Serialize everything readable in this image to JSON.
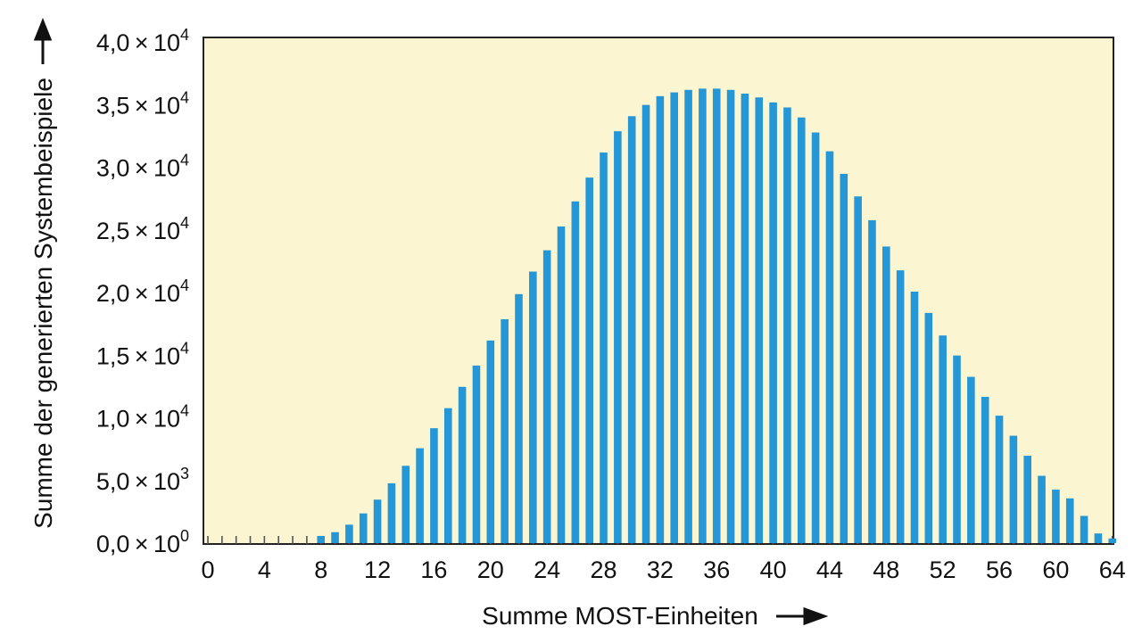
{
  "chart_data": {
    "type": "bar",
    "title": "",
    "xlabel": "Summe MOST-Einheiten",
    "ylabel": "Summe der generierten Systembeispiele",
    "xlim": [
      0,
      65
    ],
    "ylim": [
      0,
      40000
    ],
    "x_ticks": [
      0,
      4,
      8,
      12,
      16,
      20,
      24,
      28,
      32,
      36,
      40,
      44,
      48,
      52,
      56,
      60,
      64
    ],
    "y_ticks": [
      {
        "value": 0,
        "mantissa": "0,0",
        "exponent": "0"
      },
      {
        "value": 5000,
        "mantissa": "5,0",
        "exponent": "3"
      },
      {
        "value": 10000,
        "mantissa": "1,0",
        "exponent": "4"
      },
      {
        "value": 15000,
        "mantissa": "1,5",
        "exponent": "4"
      },
      {
        "value": 20000,
        "mantissa": "2,0",
        "exponent": "4"
      },
      {
        "value": 25000,
        "mantissa": "2,5",
        "exponent": "4"
      },
      {
        "value": 30000,
        "mantissa": "3,0",
        "exponent": "4"
      },
      {
        "value": 35000,
        "mantissa": "3,5",
        "exponent": "4"
      },
      {
        "value": 40000,
        "mantissa": "4,0",
        "exponent": "4"
      }
    ],
    "tick_times_symbol": "×",
    "tick_base": "10",
    "x": [
      8,
      9,
      10,
      11,
      12,
      13,
      14,
      15,
      16,
      17,
      18,
      19,
      20,
      21,
      22,
      23,
      24,
      25,
      26,
      27,
      28,
      29,
      30,
      31,
      32,
      33,
      34,
      35,
      36,
      37,
      38,
      39,
      40,
      41,
      42,
      43,
      44,
      45,
      46,
      47,
      48,
      49,
      50,
      51,
      52,
      53,
      54,
      55,
      56,
      57,
      58,
      59,
      60,
      61,
      62,
      63,
      64
    ],
    "values": [
      500,
      800,
      1400,
      2300,
      3400,
      4700,
      6100,
      7500,
      9100,
      10700,
      12400,
      14100,
      16100,
      17800,
      19800,
      21600,
      23300,
      25200,
      27200,
      29100,
      31100,
      32800,
      34000,
      34900,
      35600,
      35900,
      36100,
      36200,
      36200,
      36100,
      35800,
      35500,
      35100,
      34700,
      33900,
      32700,
      31200,
      29400,
      27600,
      25700,
      23600,
      21700,
      20000,
      18300,
      16500,
      14900,
      13200,
      11600,
      10100,
      8500,
      6900,
      5300,
      4200,
      3500,
      2100,
      700,
      300
    ],
    "baseline_ticks_x": [
      0,
      1,
      2,
      3,
      4,
      5,
      6,
      7,
      8,
      9,
      10,
      11,
      12,
      13,
      14,
      15,
      16,
      17,
      18,
      19,
      20,
      21,
      22,
      23,
      24,
      25,
      26,
      27,
      28,
      29,
      30,
      31,
      32,
      33,
      34,
      35,
      36,
      37,
      38,
      39,
      40,
      41,
      42,
      43,
      44,
      45,
      46,
      47,
      48,
      49,
      50,
      51,
      52,
      53,
      54,
      55,
      56,
      57,
      58,
      59,
      60,
      61,
      62,
      63,
      64
    ],
    "grid": false,
    "legend": "none",
    "colors": {
      "bar": "#2596d6",
      "plot_background": "#fcf5d1",
      "axis": "#222222",
      "text": "#111111"
    }
  }
}
